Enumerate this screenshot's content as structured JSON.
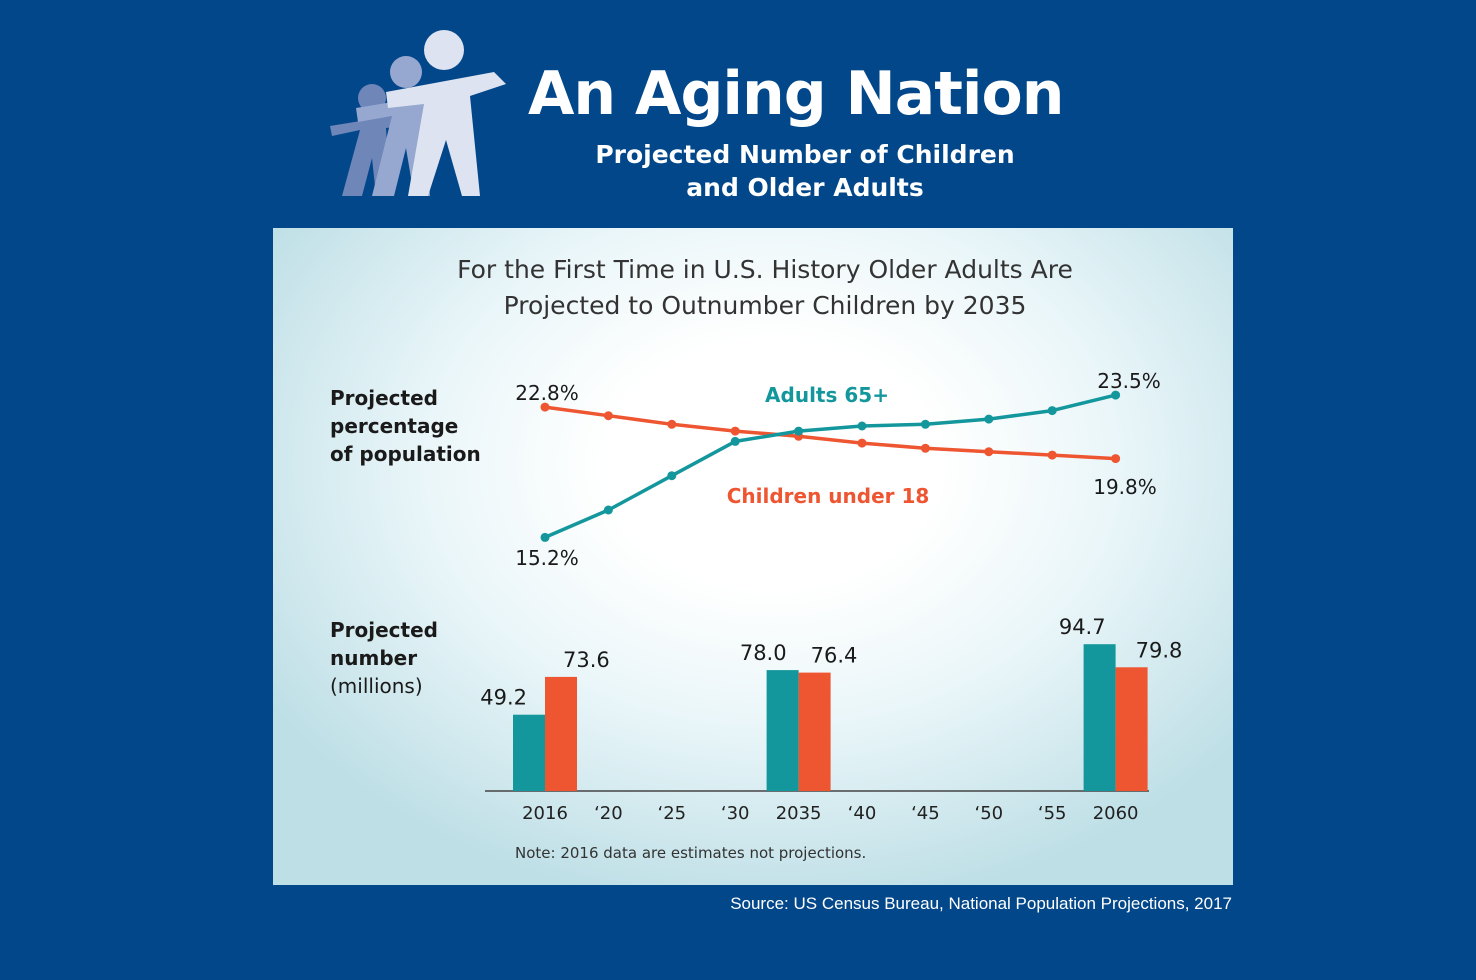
{
  "header": {
    "title": "An Aging Nation",
    "subtitle_line1": "Projected Number of Children",
    "subtitle_line2": "and Older Adults"
  },
  "colors": {
    "background": "#02478a",
    "adults": "#13979d",
    "children": "#ee5531",
    "text": "#1a1a1a"
  },
  "chart_data": [
    {
      "type": "line",
      "title_line1": "For the First Time in U.S. History Older Adults Are",
      "title_line2": "Projected to Outnumber Children by 2035",
      "ylabel_lines": [
        "Projected",
        "percentage",
        "of population"
      ],
      "x": [
        2016,
        2020,
        2025,
        2030,
        2035,
        2040,
        2045,
        2050,
        2055,
        2060
      ],
      "ylim": [
        14,
        24.5
      ],
      "series": [
        {
          "name": "Children under 18",
          "color": "#ee5531",
          "values": [
            22.8,
            22.3,
            21.8,
            21.4,
            21.1,
            20.7,
            20.4,
            20.2,
            20.0,
            19.8
          ],
          "start_label": "22.8%",
          "end_label": "19.8%"
        },
        {
          "name": "Adults 65+",
          "color": "#13979d",
          "values": [
            15.2,
            16.8,
            18.8,
            20.8,
            21.4,
            21.7,
            21.8,
            22.1,
            22.6,
            23.5
          ],
          "start_label": "15.2%",
          "end_label": "23.5%"
        }
      ]
    },
    {
      "type": "bar",
      "ylabel_bold_lines": [
        "Projected",
        "number"
      ],
      "ylabel_unit": "(millions)",
      "categories": [
        "2016",
        "2035",
        "2060"
      ],
      "ylim": [
        0,
        100
      ],
      "series": [
        {
          "name": "Adults 65+",
          "color": "#13979d",
          "values": [
            49.2,
            78.0,
            94.7
          ],
          "labels": [
            "49.2",
            "78.0",
            "94.7"
          ]
        },
        {
          "name": "Children under 18",
          "color": "#ee5531",
          "values": [
            73.6,
            76.4,
            79.8
          ],
          "labels": [
            "73.6",
            "76.4",
            "79.8"
          ]
        }
      ],
      "x_tick_labels": [
        "2016",
        "‘20",
        "‘25",
        "‘30",
        "2035",
        "‘40",
        "‘45",
        "‘50",
        "‘55",
        "2060"
      ],
      "note": "Note: 2016 data are estimates not projections."
    }
  ],
  "source": "Source: US Census Bureau, National Population Projections, 2017"
}
